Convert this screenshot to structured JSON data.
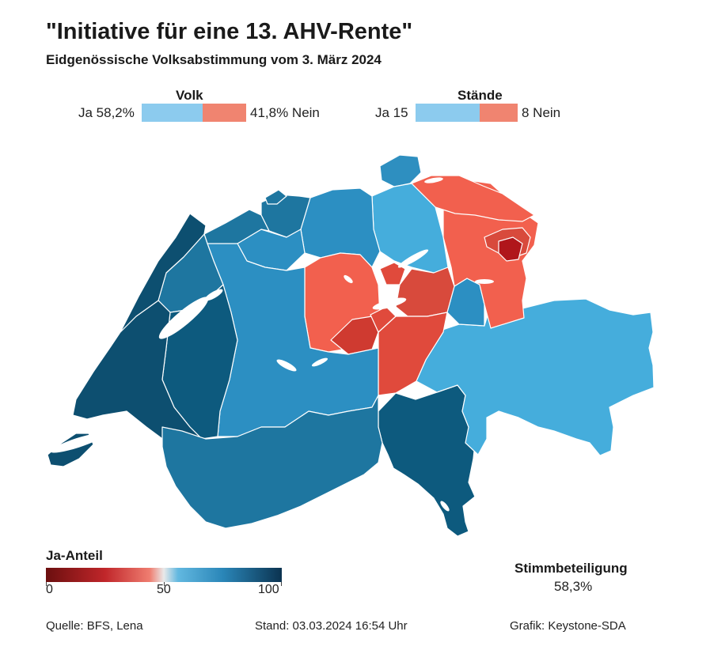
{
  "header": {
    "title": "\"Initiative für eine 13. AHV-Rente\"",
    "subtitle": "Eidgenössische Volksabstimmung vom 3. März 2024"
  },
  "results": {
    "volk": {
      "heading": "Volk",
      "ja_label": "Ja 58,2%",
      "nein_label": "41,8% Nein",
      "ja_share": 58.2,
      "nein_share": 41.8
    },
    "staende": {
      "heading": "Stände",
      "ja_label": "Ja 15",
      "nein_label": "8 Nein",
      "ja_count": 15,
      "nein_count": 8
    }
  },
  "legend": {
    "title": "Ja-Anteil",
    "ticks": [
      "0",
      "50",
      "100"
    ],
    "scale_colors": [
      "#6b0f0f",
      "#c0262a",
      "#ef7d70",
      "#e9e9e9",
      "#62b8e0",
      "#2a86b8",
      "#0b3350"
    ]
  },
  "turnout": {
    "label": "Stimmbeteiligung",
    "value": "58,3%"
  },
  "footer": {
    "source": "Quelle: BFS, Lena",
    "stand": "Stand: 03.03.2024 16:54 Uhr",
    "credit": "Grafik: Keystone-SDA"
  },
  "colors": {
    "ja_bar": "#8ccbee",
    "nein_bar": "#f08470",
    "ja_very_strong": "#0d4f70",
    "ja_strong": "#1e76a0",
    "ja_medium": "#2e8fc0",
    "ja_light": "#42aede",
    "nein_light": "#f2604e",
    "nein_medium": "#e04a3c",
    "nein_strong": "#cf3a30",
    "nein_very_strong": "#b0161b",
    "lake": "#ffffff"
  }
}
